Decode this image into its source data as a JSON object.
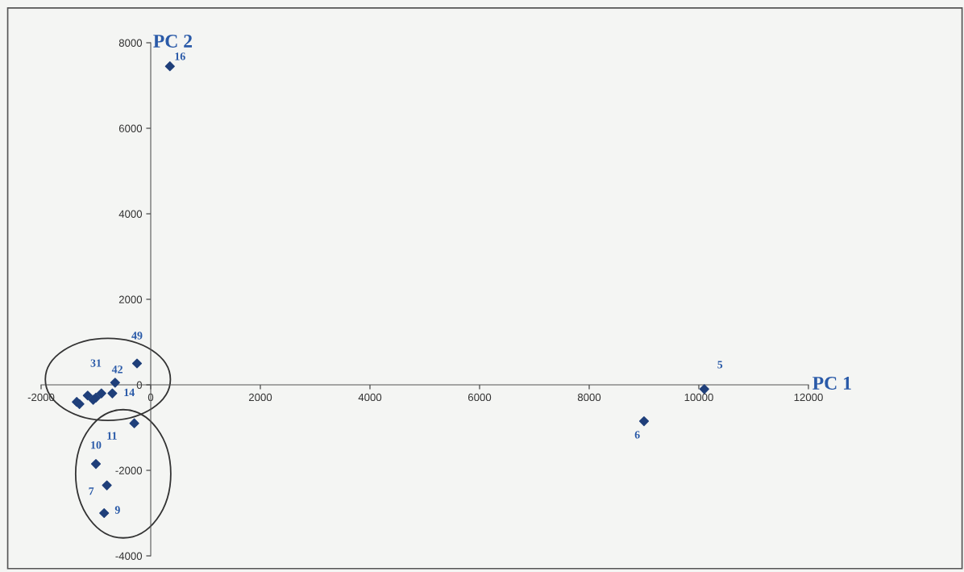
{
  "chart_data": {
    "type": "scatter",
    "xlabel": "PC 1",
    "ylabel": "PC 2",
    "marker": "diamond",
    "grid": false,
    "legend": false,
    "xlim": [
      -2000,
      12000
    ],
    "xticks": [
      -2000,
      0,
      2000,
      4000,
      6000,
      8000,
      10000,
      12000
    ],
    "ylim": [
      -4000,
      8000
    ],
    "yticks": [
      -4000,
      -2000,
      0,
      2000,
      4000,
      6000,
      8000
    ],
    "series": [
      {
        "color": "#1f3f7a",
        "x": [
          -250,
          -650,
          -700,
          -900,
          -1000,
          -1050,
          -1150,
          -1350,
          -1300,
          -300,
          -1000,
          -800,
          -850,
          350,
          10100,
          9000
        ],
        "values": [
          500,
          50,
          -200,
          -200,
          -300,
          -350,
          -250,
          -400,
          -450,
          -900,
          -1850,
          -2350,
          -3000,
          7450,
          -100,
          -850
        ]
      }
    ],
    "annotations": [
      {
        "text": "49",
        "x": -250,
        "y": 500
      },
      {
        "text": "42",
        "x": -650,
        "y": 50
      },
      {
        "text": "31",
        "x": -1000,
        "y": -300
      },
      {
        "text": "14",
        "x": -700,
        "y": -200
      },
      {
        "text": "11",
        "x": -300,
        "y": -900
      },
      {
        "text": "10",
        "x": -1000,
        "y": -1850
      },
      {
        "text": "7",
        "x": -800,
        "y": -2350
      },
      {
        "text": "9",
        "x": -850,
        "y": -3000
      },
      {
        "text": "16",
        "x": 350,
        "y": 7450
      },
      {
        "text": "5",
        "x": 10100,
        "y": -100
      },
      {
        "text": "6",
        "x": 9000,
        "y": -850
      }
    ]
  }
}
